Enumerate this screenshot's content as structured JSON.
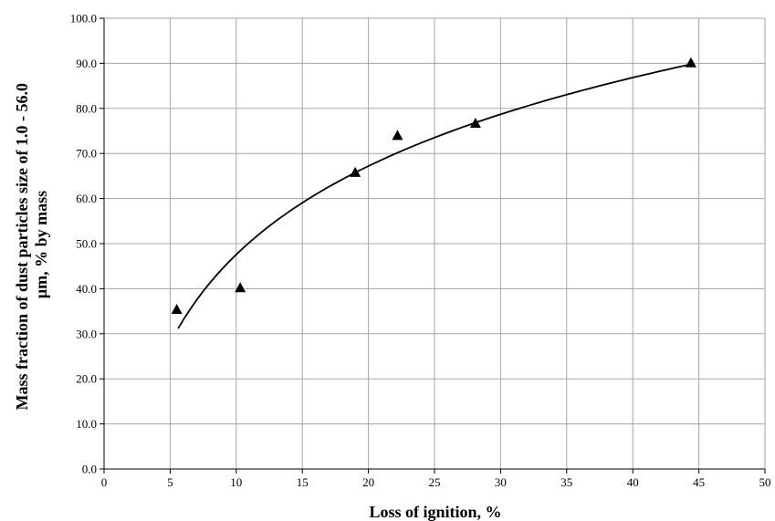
{
  "chart_data": {
    "type": "scatter",
    "title": "",
    "xlabel": "Loss of ignition, %",
    "ylabel_line1": "Mass fraction of dust particles size of 1.0 - 56.0",
    "ylabel_line2": "μm, % by mass",
    "xlim": [
      0,
      50
    ],
    "ylim": [
      0,
      100
    ],
    "grid": true,
    "x_ticks": [
      "0",
      "5",
      "10",
      "15",
      "20",
      "25",
      "30",
      "35",
      "40",
      "45",
      "50"
    ],
    "y_ticks": [
      "0.0",
      "10.0",
      "20.0",
      "30.0",
      "40.0",
      "50.0",
      "60.0",
      "70.0",
      "80.0",
      "90.0",
      "100.0"
    ],
    "series": [
      {
        "marker": "triangle",
        "color": "#000000",
        "points": [
          {
            "x": 5.5,
            "y": 35.3
          },
          {
            "x": 10.3,
            "y": 40.1
          },
          {
            "x": 19.0,
            "y": 65.7
          },
          {
            "x": 22.2,
            "y": 73.9
          },
          {
            "x": 28.1,
            "y": 76.6
          },
          {
            "x": 44.4,
            "y": 90.0
          }
        ]
      }
    ],
    "trendline": {
      "type": "logarithmic",
      "color": "#000000",
      "x_range": [
        5.6,
        44.4
      ]
    }
  }
}
